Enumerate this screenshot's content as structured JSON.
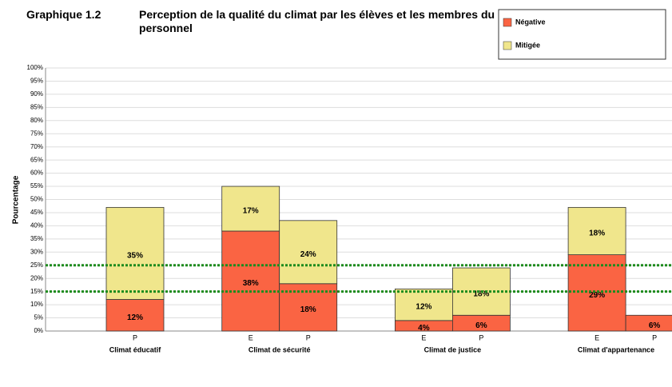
{
  "chart_data": {
    "type": "stacked_bar",
    "figure_label": "Graphique 1.2",
    "title": "Perception de la qualité du climat par les élèves et les membres du personnel",
    "y_label": "Pourcentage",
    "groups": [
      "Climat éducatif",
      "Climat de sécurité",
      "Climat de justice",
      "Climat d'appartenance"
    ],
    "categories": [
      null,
      "P",
      "E",
      "P",
      "E",
      "P",
      "E",
      "P"
    ],
    "series": [
      {
        "name": "Négative",
        "color": "#fa6443",
        "values": [
          null,
          12,
          38,
          18,
          4,
          6,
          29,
          6
        ],
        "value_labels": [
          null,
          "12%",
          "38%",
          "18%",
          "4%",
          "6%",
          "29%",
          "6%"
        ]
      },
      {
        "name": "Mitigée",
        "color": "#f0e68c",
        "values": [
          null,
          35,
          17,
          24,
          12,
          18,
          18,
          null
        ],
        "value_labels": [
          null,
          "35%",
          "17%",
          "24%",
          "12%",
          "18%",
          "18%",
          null
        ]
      }
    ],
    "ylim": [
      0,
      100
    ],
    "yticks": [
      {
        "value": 0,
        "label": "0%"
      },
      {
        "value": 5,
        "label": "5%"
      },
      {
        "value": 10,
        "label": "10%"
      },
      {
        "value": 15,
        "label": "15%"
      },
      {
        "value": 20,
        "label": "20%"
      },
      {
        "value": 25,
        "label": "25%"
      },
      {
        "value": 30,
        "label": "30%"
      },
      {
        "value": 35,
        "label": "35%"
      },
      {
        "value": 40,
        "label": "40%"
      },
      {
        "value": 45,
        "label": "45%"
      },
      {
        "value": 50,
        "label": "50%"
      },
      {
        "value": 55,
        "label": "55%"
      },
      {
        "value": 60,
        "label": "60%"
      },
      {
        "value": 65,
        "label": "65%"
      },
      {
        "value": 70,
        "label": "70%"
      },
      {
        "value": 75,
        "label": "75%"
      },
      {
        "value": 80,
        "label": "80%"
      },
      {
        "value": 85,
        "label": "85%"
      },
      {
        "value": 90,
        "label": "90%"
      },
      {
        "value": 95,
        "label": "95%"
      },
      {
        "value": 100,
        "label": "100%"
      }
    ],
    "reference_lines": [
      {
        "value": 15,
        "color": "#1e8c1e"
      },
      {
        "value": 25,
        "color": "#1e8c1e"
      }
    ],
    "grid": true,
    "legend": "top-right"
  }
}
